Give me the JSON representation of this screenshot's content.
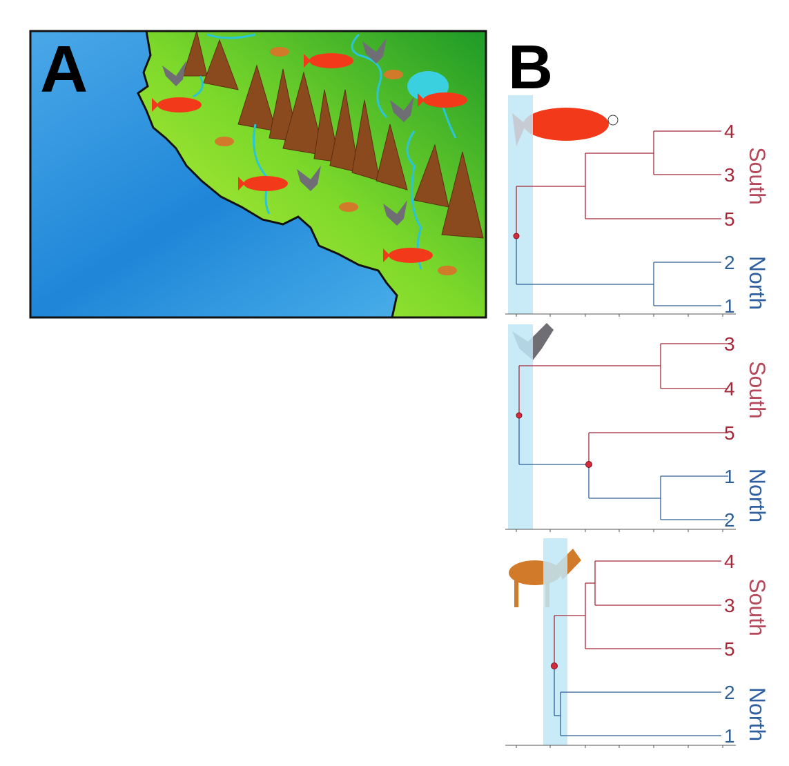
{
  "panel_a": {
    "label": "A"
  },
  "panel_b": {
    "label": "B",
    "trees": [
      {
        "tips": [
          "4",
          "3",
          "5",
          "2",
          "1"
        ],
        "groups": [
          "South",
          "North"
        ]
      },
      {
        "tips": [
          "3",
          "4",
          "5",
          "1",
          "2"
        ],
        "groups": [
          "South",
          "North"
        ]
      },
      {
        "tips": [
          "4",
          "3",
          "5",
          "2",
          "1"
        ],
        "groups": [
          "South",
          "North"
        ]
      }
    ]
  }
}
